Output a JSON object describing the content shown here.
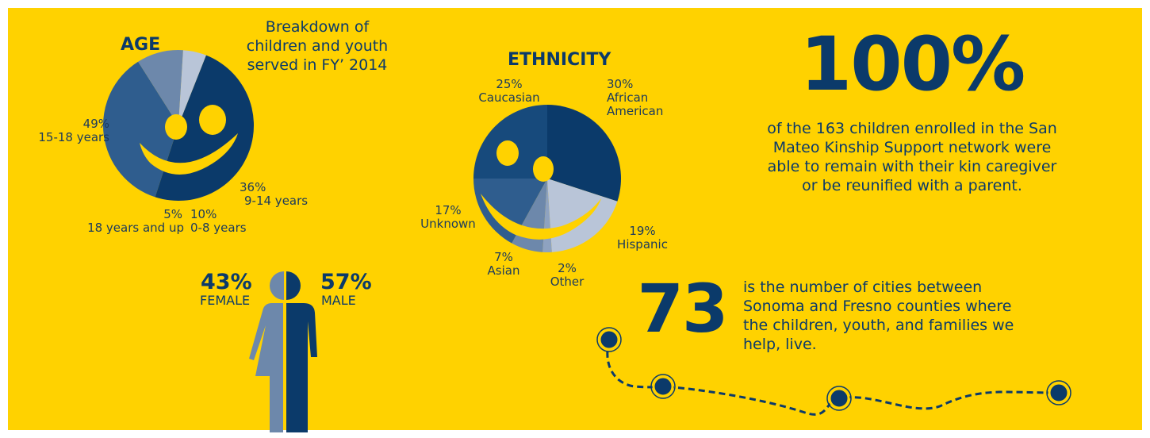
{
  "subtitle": "Breakdown of children and youth served in FY’ 2014",
  "colors": {
    "background": "#FFD200",
    "navy": "#0b3a6a",
    "blue": "#2f5d8e",
    "slate": "#6d88ab",
    "light": "#b9c5d8",
    "smile": "#FFD200"
  },
  "chart_data": [
    {
      "type": "pie",
      "title": "AGE",
      "slices": [
        {
          "percent": "49%",
          "label": "15-18 years",
          "value": 49,
          "color": "#0b3a6a"
        },
        {
          "percent": "36%",
          "label": "9-14 years",
          "value": 36,
          "color": "#2f5d8e"
        },
        {
          "percent": "10%",
          "label": "0-8 years",
          "value": 10,
          "color": "#6d88ab"
        },
        {
          "percent": "5%",
          "label": "18 years and up",
          "value": 5,
          "color": "#b9c5d8"
        }
      ]
    },
    {
      "type": "pie",
      "title": "ETHNICITY",
      "slices": [
        {
          "percent": "30%",
          "label": "African American",
          "value": 30,
          "color": "#0b3a6a"
        },
        {
          "percent": "19%",
          "label": "Hispanic",
          "value": 19,
          "color": "#b9c5d8"
        },
        {
          "percent": "2%",
          "label": "Other",
          "value": 2,
          "color": "#8ea2c0"
        },
        {
          "percent": "7%",
          "label": "Asian",
          "value": 7,
          "color": "#6d88ab"
        },
        {
          "percent": "17%",
          "label": "Unknown",
          "value": 17,
          "color": "#2f5d8e"
        },
        {
          "percent": "25%",
          "label": "Caucasian",
          "value": 25,
          "color": "#174a7c"
        }
      ]
    }
  ],
  "gender": {
    "female_percent": "43%",
    "female_label": "FEMALE",
    "male_percent": "57%",
    "male_label": "MALE"
  },
  "stat_enrolled": {
    "value": "100%",
    "description": "of the 163 children enrolled in the San Mateo Kinship Support network were able to remain with their kin caregiver or be reunified with a parent."
  },
  "stat_cities": {
    "value": "73",
    "description": "is the number of cities between Sonoma and Fresno counties where the children, youth, and families we help, live."
  }
}
